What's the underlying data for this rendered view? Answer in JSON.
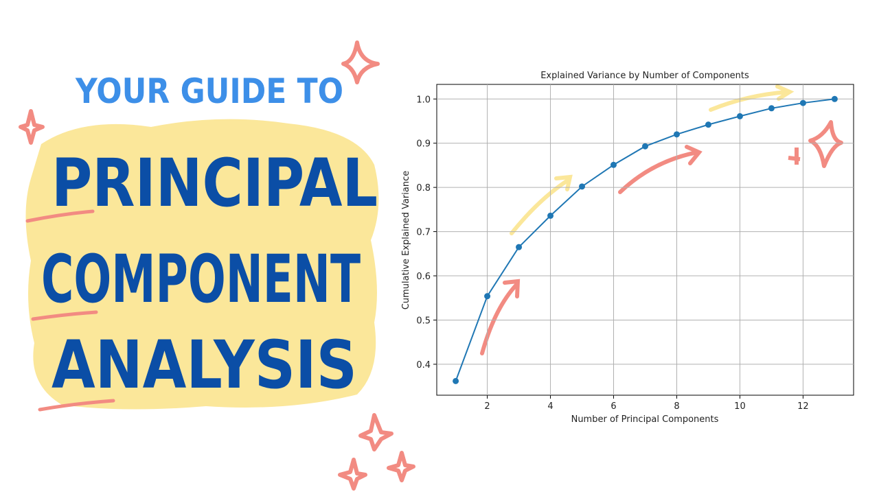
{
  "headline": {
    "kicker": "YOUR GUIDE TO",
    "lines": [
      "PRINCIPAL",
      "COMPONENT",
      "ANALYSIS"
    ]
  },
  "chart_data": {
    "type": "line",
    "title": "Explained Variance by Number of Components",
    "x_label": "Number of Principal Components",
    "y_label": "Cumulative Explained Variance",
    "x": [
      1,
      2,
      3,
      4,
      5,
      6,
      7,
      8,
      9,
      10,
      11,
      12,
      13
    ],
    "values": [
      0.362,
      0.554,
      0.665,
      0.736,
      0.802,
      0.851,
      0.893,
      0.92,
      0.942,
      0.961,
      0.979,
      0.991,
      1.0
    ],
    "color": "#1f77b4",
    "xlim": [
      0.4,
      13.6
    ],
    "xticks": [
      2,
      4,
      6,
      8,
      10,
      12
    ],
    "ylim": [
      0.33,
      1.033
    ],
    "yticks": [
      0.4,
      0.5,
      0.6,
      0.7,
      0.8,
      0.9,
      {
        "value": 1,
        "label": "1.0"
      }
    ],
    "grid": true
  }
}
